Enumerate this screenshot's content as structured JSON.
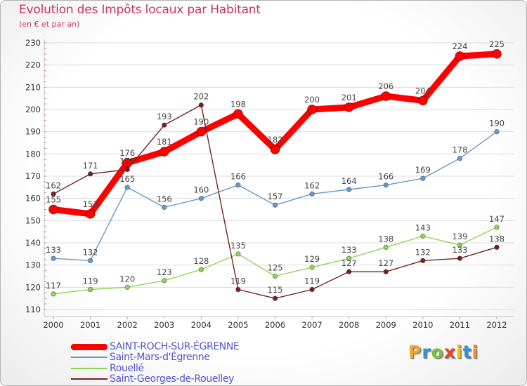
{
  "chart_data": {
    "type": "line",
    "title": "Evolution des Impôts locaux par Habitant",
    "subtitle": "(en € et par an)",
    "x": [
      2000,
      2001,
      2002,
      2003,
      2004,
      2005,
      2006,
      2007,
      2008,
      2009,
      2010,
      2011,
      2012
    ],
    "ylim": [
      110,
      230
    ],
    "yticks": [
      110,
      120,
      130,
      140,
      150,
      160,
      170,
      180,
      190,
      200,
      210,
      220,
      230
    ],
    "grid": true,
    "legend_position": "bottom-left",
    "series": [
      {
        "name": "SAINT-ROCH-SUR-ÉGRENNE",
        "color": "#ff0000",
        "values": [
          155,
          153,
          176,
          181,
          190,
          198,
          182,
          200,
          201,
          206,
          204,
          224,
          225
        ]
      },
      {
        "name": "Saint-Mars-d'Égrenne",
        "color": "#6699cc",
        "values": [
          133,
          132,
          165,
          156,
          160,
          166,
          157,
          162,
          164,
          166,
          169,
          178,
          190
        ]
      },
      {
        "name": "Rouellé",
        "color": "#8fd45a",
        "values": [
          117,
          119,
          120,
          123,
          128,
          135,
          125,
          129,
          133,
          138,
          143,
          139,
          147
        ]
      },
      {
        "name": "Saint-Georges-de-Rouelley",
        "color": "#772222",
        "values": [
          162,
          171,
          173,
          193,
          202,
          119,
          115,
          119,
          127,
          127,
          132,
          133,
          138
        ]
      }
    ]
  },
  "logo": {
    "text": "Proxiti",
    "colors": [
      "#f5a623",
      "#3b8ed8",
      "#7cc242",
      "#e8432e",
      "#f2c200",
      "#3b8ed8",
      "#f28c28"
    ]
  }
}
